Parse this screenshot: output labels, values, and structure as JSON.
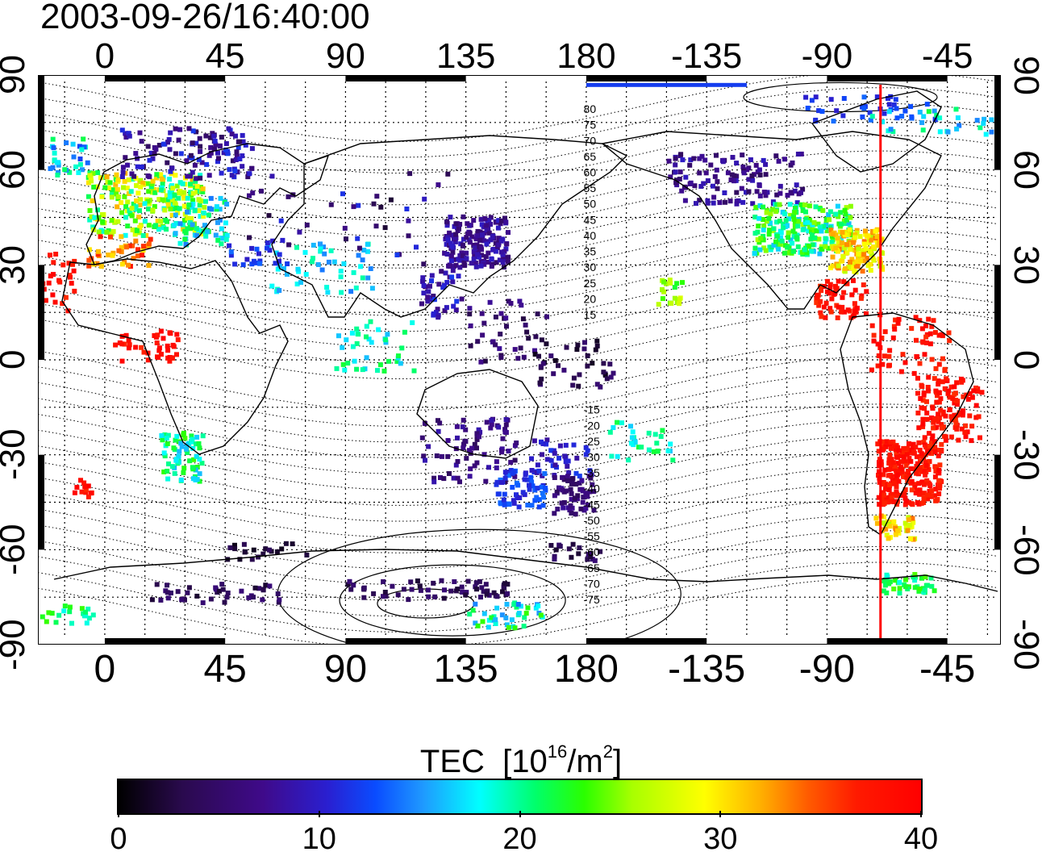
{
  "timestamp": "2003-09-26/16:40:00",
  "colorbar": {
    "title_main": "TEC",
    "title_unit_prefix": "[10",
    "title_exp1": "16",
    "title_mid": "/m",
    "title_exp2": "2",
    "title_close": "]",
    "ticks": [
      "0",
      "10",
      "20",
      "30",
      "40"
    ],
    "range": [
      0,
      40
    ]
  },
  "map": {
    "projection": "equirectangular",
    "lon_range_east": [
      -25,
      335
    ],
    "lat_range": [
      -90,
      90
    ],
    "top_ticks": [
      "0",
      "45",
      "90",
      "135",
      "180",
      "-135",
      "-90",
      "-45"
    ],
    "bottom_ticks": [
      "0",
      "45",
      "90",
      "135",
      "180",
      "-135",
      "-90",
      "-45"
    ],
    "left_ticks": [
      "90",
      "60",
      "30",
      "0",
      "-30",
      "-60",
      "-90"
    ],
    "right_ticks": [
      "90",
      "60",
      "30",
      "0",
      "-30",
      "-60",
      "-90"
    ],
    "contour_labels_north": [
      "80",
      "75",
      "70",
      "65",
      "60",
      "55",
      "50",
      "45",
      "40",
      "35",
      "30",
      "25",
      "20",
      "15"
    ],
    "contour_labels_south": [
      "-15",
      "-20",
      "-25",
      "-30",
      "-35",
      "-40",
      "-45",
      "-50",
      "-55",
      "-60",
      "-65",
      "-70",
      "-75"
    ],
    "meridian_line": {
      "lon": -70,
      "color": "#ff0000"
    },
    "colors": {
      "grid": "#000000",
      "coast": "#000000",
      "contour": "#000000"
    }
  }
}
